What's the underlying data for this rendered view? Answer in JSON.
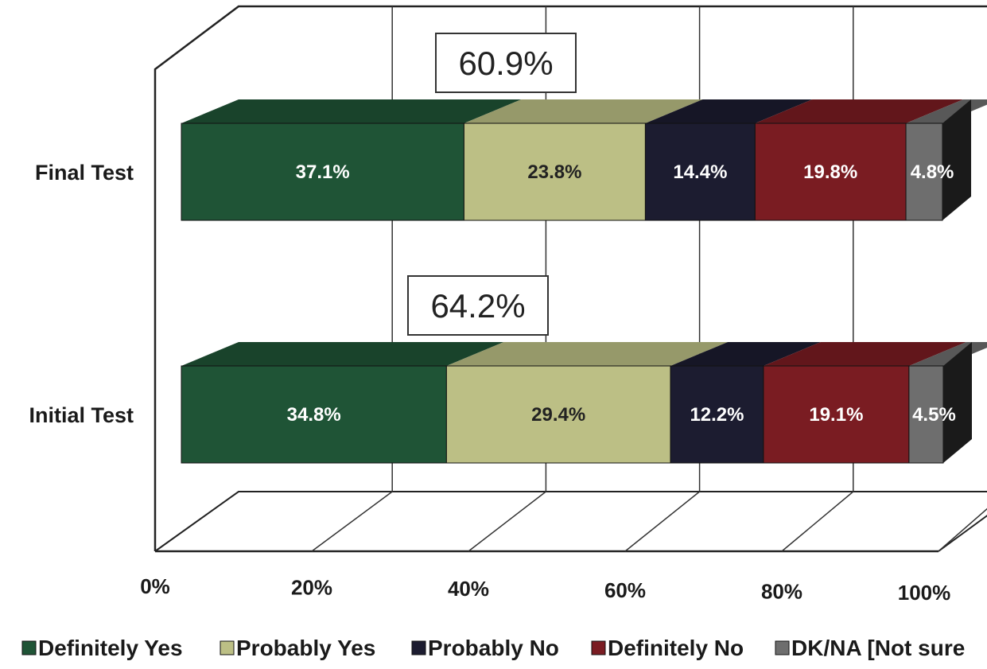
{
  "chart_data": {
    "type": "bar",
    "orientation": "horizontal",
    "stacked": true,
    "three_d": true,
    "categories": [
      "Final Test",
      "Initial Test"
    ],
    "series": [
      {
        "name": "Definitely Yes",
        "color": "#1f5436",
        "label_color": "#ffffff",
        "values": [
          37.1,
          34.8
        ],
        "labels": [
          "37.1%",
          "34.8%"
        ]
      },
      {
        "name": "Probably Yes",
        "color": "#bcbf85",
        "label_color": "#222222",
        "values": [
          23.8,
          29.4
        ],
        "labels": [
          "23.8%",
          "29.4%"
        ]
      },
      {
        "name": "Probably No",
        "color": "#1c1c30",
        "label_color": "#ffffff",
        "values": [
          14.4,
          12.2
        ],
        "labels": [
          "14.4%",
          "12.2%"
        ]
      },
      {
        "name": "Definitely No",
        "color": "#7a1c22",
        "label_color": "#ffffff",
        "values": [
          19.8,
          19.1
        ],
        "labels": [
          "19.8%",
          "19.1%"
        ]
      },
      {
        "name": "DK/NA [Not sure",
        "color": "#6e6e6e",
        "label_color": "#ffffff",
        "values": [
          4.8,
          4.5
        ],
        "labels": [
          "4.8%",
          "4.5%"
        ]
      }
    ],
    "callouts": [
      "60.9%",
      "64.2%"
    ],
    "x_ticks": [
      "0%",
      "20%",
      "40%",
      "60%",
      "80%",
      "100%"
    ],
    "xlim": [
      0,
      100
    ],
    "grid": true,
    "legend_position": "bottom"
  }
}
